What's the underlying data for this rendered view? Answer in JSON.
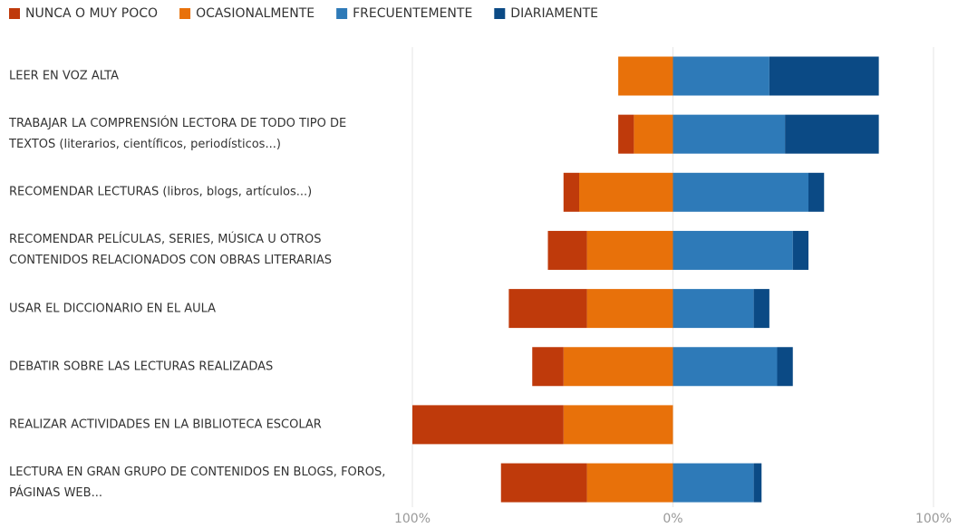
{
  "chart_data": {
    "type": "diverging-bar",
    "categories": [
      "LEER EN VOZ ALTA",
      "TRABAJAR LA COMPRENSIÓN LECTORA DE TODO TIPO DE TEXTOS (literarios, científicos, periodísticos...)",
      "RECOMENDAR LECTURAS (libros, blogs, artículos...)",
      "RECOMENDAR PELÍCULAS, SERIES, MÚSICA U OTROS CONTENIDOS RELACIONADOS CON OBRAS LITERARIAS",
      "USAR EL DICCIONARIO EN EL AULA",
      "DEBATIR SOBRE LAS LECTURAS REALIZADAS",
      "REALIZAR ACTIVIDADES EN LA BIBLIOTECA ESCOLAR",
      "LECTURA EN GRAN GRUPO DE CONTENIDOS EN BLOGS, FOROS, PÁGINAS WEB..."
    ],
    "series": [
      {
        "name": "NUNCA O MUY POCO",
        "color": "#bf3a0b",
        "side": "negative",
        "values": [
          0,
          6,
          6,
          15,
          30,
          12,
          58,
          33
        ]
      },
      {
        "name": "OCASIONALMENTE",
        "color": "#e8710a",
        "side": "negative",
        "values": [
          21,
          15,
          36,
          33,
          33,
          42,
          42,
          33
        ]
      },
      {
        "name": "FRECUENTEMENTE",
        "color": "#2e7ab8",
        "side": "positive",
        "values": [
          37,
          43,
          52,
          46,
          31,
          40,
          0,
          31
        ]
      },
      {
        "name": "DIARIAMENTE",
        "color": "#0b4a85",
        "side": "positive",
        "values": [
          42,
          36,
          6,
          6,
          6,
          6,
          0,
          3
        ]
      }
    ],
    "xlim": [
      -100,
      100
    ],
    "xticks": [
      {
        "value": -100,
        "label": "100%"
      },
      {
        "value": 0,
        "label": "0%"
      },
      {
        "value": 100,
        "label": "100%"
      }
    ],
    "grid": true,
    "legend": "top"
  }
}
